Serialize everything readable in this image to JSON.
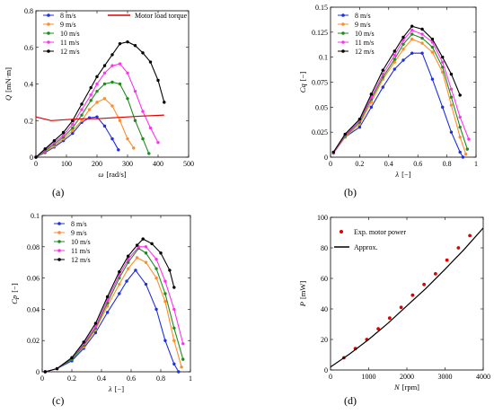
{
  "chart_data": [
    {
      "panel": "(a)",
      "type": "line",
      "xlabel_sym": "ω",
      "xlabel_unit": "[rad/s]",
      "ylabel_sym": "Q",
      "ylabel_unit": "[mN·m]",
      "xlim": [
        0,
        500
      ],
      "ylim": [
        0,
        0.8
      ],
      "xticks": [
        0,
        100,
        200,
        300,
        400,
        500
      ],
      "yticks": [
        0,
        0.2,
        0.4,
        0.6,
        0.8
      ],
      "yticklabels": [
        "0",
        "0.2",
        "0.4",
        "0.6",
        "0.8"
      ],
      "legend": "top-left",
      "series": [
        {
          "name": "8 m/s",
          "color": "#1f2fdc",
          "marker": "circle",
          "x": [
            0,
            30,
            60,
            90,
            120,
            150,
            175,
            200,
            225,
            250,
            270
          ],
          "y": [
            0,
            0.025,
            0.055,
            0.09,
            0.13,
            0.19,
            0.215,
            0.22,
            0.17,
            0.1,
            0.04
          ]
        },
        {
          "name": "9 m/s",
          "color": "#ff8c2b",
          "marker": "circle",
          "x": [
            0,
            30,
            60,
            90,
            120,
            150,
            175,
            200,
            225,
            250,
            275,
            300,
            320
          ],
          "y": [
            0,
            0.03,
            0.06,
            0.1,
            0.145,
            0.2,
            0.26,
            0.3,
            0.32,
            0.28,
            0.2,
            0.1,
            0.05
          ]
        },
        {
          "name": "10 m/s",
          "color": "#1f8b1f",
          "marker": "circle",
          "x": [
            0,
            30,
            60,
            90,
            120,
            150,
            180,
            200,
            225,
            250,
            275,
            300,
            325,
            350,
            370
          ],
          "y": [
            0,
            0.035,
            0.07,
            0.11,
            0.16,
            0.23,
            0.31,
            0.36,
            0.4,
            0.41,
            0.4,
            0.32,
            0.2,
            0.1,
            0.02
          ]
        },
        {
          "name": "11 m/s",
          "color": "#ff33ee",
          "marker": "circle",
          "x": [
            0,
            30,
            60,
            90,
            120,
            150,
            180,
            200,
            225,
            250,
            275,
            300,
            325,
            350,
            375,
            400
          ],
          "y": [
            0,
            0.04,
            0.08,
            0.12,
            0.18,
            0.26,
            0.34,
            0.4,
            0.46,
            0.5,
            0.51,
            0.46,
            0.36,
            0.25,
            0.16,
            0.08
          ]
        },
        {
          "name": "12 m/s",
          "color": "#000000",
          "marker": "circle",
          "x": [
            0,
            30,
            60,
            90,
            120,
            150,
            180,
            200,
            225,
            250,
            275,
            300,
            325,
            350,
            375,
            400,
            420
          ],
          "y": [
            0,
            0.045,
            0.09,
            0.135,
            0.2,
            0.29,
            0.38,
            0.44,
            0.5,
            0.56,
            0.62,
            0.63,
            0.61,
            0.57,
            0.52,
            0.42,
            0.3
          ]
        },
        {
          "name": "Motor load torque",
          "color": "#e00000",
          "marker": "none",
          "x": [
            0,
            50,
            100,
            150,
            200,
            250,
            300,
            350,
            400,
            420
          ],
          "y": [
            0.22,
            0.2,
            0.205,
            0.21,
            0.21,
            0.215,
            0.22,
            0.225,
            0.228,
            0.23
          ]
        }
      ]
    },
    {
      "panel": "(b)",
      "type": "line",
      "xlabel_sym": "λ",
      "xlabel_unit": "[−]",
      "ylabel_sym": "Cq",
      "ylabel_unit": "[−]",
      "xlim": [
        0,
        1
      ],
      "ylim": [
        0,
        0.15
      ],
      "xticks": [
        0,
        0.2,
        0.4,
        0.6,
        0.8,
        1
      ],
      "xticklabels": [
        "0",
        "0.2",
        "0.4",
        "0.6",
        "0.8",
        "1"
      ],
      "yticks": [
        0,
        0.025,
        0.05,
        0.075,
        0.1,
        0.125,
        0.15
      ],
      "yticklabels": [
        "0",
        "0.025",
        "0.05",
        "0.075",
        "0.1",
        "0.125",
        "0.15"
      ],
      "legend": "top-left",
      "series": [
        {
          "name": "8 m/s",
          "color": "#1f2fdc",
          "x": [
            0.02,
            0.1,
            0.2,
            0.28,
            0.36,
            0.44,
            0.5,
            0.56,
            0.63,
            0.7,
            0.77,
            0.83,
            0.89,
            0.91
          ],
          "y": [
            0.004,
            0.02,
            0.03,
            0.05,
            0.07,
            0.088,
            0.097,
            0.104,
            0.104,
            0.078,
            0.05,
            0.025,
            0.005,
            0.0
          ]
        },
        {
          "name": "9 m/s",
          "color": "#ff8c2b",
          "x": [
            0.02,
            0.1,
            0.2,
            0.28,
            0.36,
            0.44,
            0.5,
            0.56,
            0.63,
            0.7,
            0.77,
            0.83,
            0.89,
            0.93
          ],
          "y": [
            0.004,
            0.02,
            0.033,
            0.055,
            0.078,
            0.095,
            0.108,
            0.118,
            0.114,
            0.105,
            0.085,
            0.052,
            0.02,
            0.003
          ]
        },
        {
          "name": "10 m/s",
          "color": "#1f8b1f",
          "x": [
            0.02,
            0.1,
            0.2,
            0.28,
            0.36,
            0.44,
            0.5,
            0.56,
            0.63,
            0.7,
            0.77,
            0.83,
            0.89,
            0.94
          ],
          "y": [
            0.004,
            0.021,
            0.035,
            0.058,
            0.08,
            0.098,
            0.113,
            0.123,
            0.119,
            0.11,
            0.09,
            0.06,
            0.03,
            0.008
          ]
        },
        {
          "name": "11 m/s",
          "color": "#ff33ee",
          "x": [
            0.02,
            0.1,
            0.2,
            0.28,
            0.36,
            0.44,
            0.5,
            0.56,
            0.63,
            0.7,
            0.77,
            0.83,
            0.89,
            0.95
          ],
          "y": [
            0.004,
            0.022,
            0.037,
            0.06,
            0.083,
            0.102,
            0.117,
            0.127,
            0.123,
            0.115,
            0.095,
            0.068,
            0.04,
            0.018
          ]
        },
        {
          "name": "12 m/s",
          "color": "#000000",
          "x": [
            0.02,
            0.1,
            0.2,
            0.28,
            0.36,
            0.44,
            0.5,
            0.56,
            0.63,
            0.7,
            0.77,
            0.83,
            0.89
          ],
          "y": [
            0.005,
            0.023,
            0.038,
            0.063,
            0.087,
            0.106,
            0.12,
            0.131,
            0.128,
            0.118,
            0.1,
            0.083,
            0.062
          ]
        }
      ]
    },
    {
      "panel": "(c)",
      "type": "line",
      "xlabel_sym": "λ",
      "xlabel_unit": "[−]",
      "ylabel_sym": "Cp",
      "ylabel_unit": "[−]",
      "xlim": [
        0,
        1
      ],
      "ylim": [
        0,
        0.1
      ],
      "xticks": [
        0,
        0.2,
        0.4,
        0.6,
        0.8,
        1
      ],
      "xticklabels": [
        "0",
        "0.2",
        "0.4",
        "0.6",
        "0.8",
        "1"
      ],
      "yticks": [
        0,
        0.02,
        0.04,
        0.06,
        0.08,
        0.1
      ],
      "yticklabels": [
        "0",
        "0.02",
        "0.04",
        "0.06",
        "0.08",
        "0.1"
      ],
      "legend": "top-left",
      "series": [
        {
          "name": "8 m/s",
          "color": "#1f2fdc",
          "x": [
            0.02,
            0.1,
            0.2,
            0.28,
            0.36,
            0.44,
            0.52,
            0.57,
            0.63,
            0.7,
            0.77,
            0.83,
            0.89,
            0.92
          ],
          "y": [
            0.0,
            0.002,
            0.007,
            0.015,
            0.025,
            0.038,
            0.05,
            0.058,
            0.065,
            0.056,
            0.04,
            0.02,
            0.005,
            0.0
          ]
        },
        {
          "name": "9 m/s",
          "color": "#ff8c2b",
          "x": [
            0.02,
            0.1,
            0.2,
            0.28,
            0.36,
            0.44,
            0.52,
            0.58,
            0.64,
            0.7,
            0.77,
            0.83,
            0.89,
            0.94
          ],
          "y": [
            0.0,
            0.002,
            0.008,
            0.016,
            0.027,
            0.042,
            0.056,
            0.066,
            0.073,
            0.07,
            0.06,
            0.045,
            0.02,
            0.003
          ]
        },
        {
          "name": "10 m/s",
          "color": "#1f8b1f",
          "x": [
            0.02,
            0.1,
            0.2,
            0.28,
            0.36,
            0.44,
            0.52,
            0.58,
            0.65,
            0.7,
            0.77,
            0.83,
            0.89,
            0.95
          ],
          "y": [
            0.0,
            0.002,
            0.008,
            0.017,
            0.028,
            0.044,
            0.06,
            0.07,
            0.079,
            0.076,
            0.066,
            0.05,
            0.028,
            0.008
          ]
        },
        {
          "name": "11 m/s",
          "color": "#ff33ee",
          "x": [
            0.02,
            0.1,
            0.2,
            0.28,
            0.36,
            0.44,
            0.52,
            0.58,
            0.65,
            0.7,
            0.77,
            0.83,
            0.89,
            0.95
          ],
          "y": [
            0.0,
            0.002,
            0.009,
            0.018,
            0.029,
            0.046,
            0.062,
            0.072,
            0.08,
            0.08,
            0.072,
            0.058,
            0.04,
            0.018
          ]
        },
        {
          "name": "12 m/s",
          "color": "#000000",
          "x": [
            0.02,
            0.1,
            0.2,
            0.28,
            0.36,
            0.44,
            0.52,
            0.58,
            0.64,
            0.68,
            0.74,
            0.8,
            0.86,
            0.89
          ],
          "y": [
            0.0,
            0.002,
            0.009,
            0.019,
            0.031,
            0.048,
            0.064,
            0.074,
            0.081,
            0.085,
            0.082,
            0.076,
            0.065,
            0.054
          ]
        }
      ]
    },
    {
      "panel": "(d)",
      "type": "scatter",
      "xlabel_sym": "N",
      "xlabel_unit": "[rpm]",
      "ylabel_sym": "P",
      "ylabel_unit": "[mW]",
      "xlim": [
        0,
        4000
      ],
      "ylim": [
        0,
        100
      ],
      "xticks": [
        0,
        1000,
        2000,
        3000,
        4000
      ],
      "yticks": [
        0,
        20,
        40,
        60,
        80,
        100
      ],
      "legend": "top-left",
      "series": [
        {
          "name": "Exp. motor power",
          "color": "#e00000",
          "marker": "circle",
          "x": [
            350,
            650,
            950,
            1250,
            1550,
            1850,
            2150,
            2450,
            2750,
            3050,
            3350,
            3650
          ],
          "y": [
            8,
            14,
            20,
            27,
            34,
            41,
            49,
            56,
            63,
            72,
            80,
            88
          ]
        },
        {
          "name": "Approx.",
          "color": "#000000",
          "marker": "none",
          "x": [
            0,
            500,
            1000,
            1500,
            2000,
            2500,
            3000,
            3500,
            4000
          ],
          "y": [
            2,
            10.5,
            20,
            30.5,
            42,
            53.5,
            66,
            79,
            93
          ]
        }
      ]
    }
  ]
}
